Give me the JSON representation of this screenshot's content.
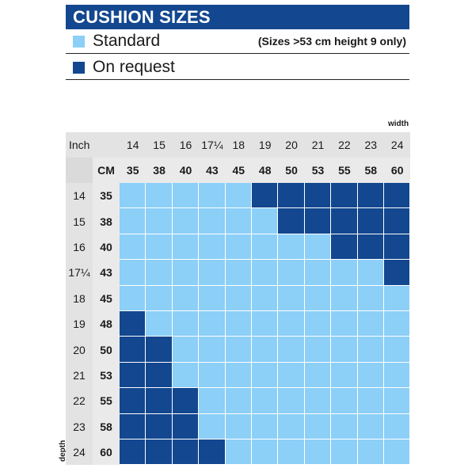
{
  "title": "CUSHION SIZES",
  "legend": {
    "standard": {
      "label": "Standard",
      "color": "#8ccff7"
    },
    "on_request": {
      "label": "On request",
      "color": "#13478f"
    },
    "note": "(Sizes >53 cm height 9 only)"
  },
  "axis": {
    "width_label": "width",
    "depth_label": "depth",
    "inch_label": "Inch",
    "cm_label": "CM"
  },
  "chart_data": {
    "type": "table",
    "title": "CUSHION SIZES",
    "columns_inch": [
      "14",
      "15",
      "16",
      "17¼",
      "18",
      "19",
      "20",
      "21",
      "22",
      "23",
      "24"
    ],
    "columns_cm": [
      "35",
      "38",
      "40",
      "43",
      "45",
      "48",
      "50",
      "53",
      "55",
      "58",
      "60"
    ],
    "rows_inch": [
      "14",
      "15",
      "16",
      "17¼",
      "18",
      "19",
      "20",
      "21",
      "22",
      "23",
      "24"
    ],
    "rows_cm": [
      "35",
      "38",
      "40",
      "43",
      "45",
      "48",
      "50",
      "53",
      "55",
      "58",
      "60"
    ],
    "matrix": [
      [
        "S",
        "S",
        "S",
        "S",
        "S",
        "R",
        "R",
        "R",
        "R",
        "R",
        "R"
      ],
      [
        "S",
        "S",
        "S",
        "S",
        "S",
        "S",
        "R",
        "R",
        "R",
        "R",
        "R"
      ],
      [
        "S",
        "S",
        "S",
        "S",
        "S",
        "S",
        "S",
        "S",
        "R",
        "R",
        "R"
      ],
      [
        "S",
        "S",
        "S",
        "S",
        "S",
        "S",
        "S",
        "S",
        "S",
        "S",
        "R"
      ],
      [
        "S",
        "S",
        "S",
        "S",
        "S",
        "S",
        "S",
        "S",
        "S",
        "S",
        "S"
      ],
      [
        "R",
        "S",
        "S",
        "S",
        "S",
        "S",
        "S",
        "S",
        "S",
        "S",
        "S"
      ],
      [
        "R",
        "R",
        "S",
        "S",
        "S",
        "S",
        "S",
        "S",
        "S",
        "S",
        "S"
      ],
      [
        "R",
        "R",
        "S",
        "S",
        "S",
        "S",
        "S",
        "S",
        "S",
        "S",
        "S"
      ],
      [
        "R",
        "R",
        "R",
        "S",
        "S",
        "S",
        "S",
        "S",
        "S",
        "S",
        "S"
      ],
      [
        "R",
        "R",
        "R",
        "S",
        "S",
        "S",
        "S",
        "S",
        "S",
        "S",
        "S"
      ],
      [
        "R",
        "R",
        "R",
        "R",
        "S",
        "S",
        "S",
        "S",
        "S",
        "S",
        "S"
      ]
    ]
  }
}
